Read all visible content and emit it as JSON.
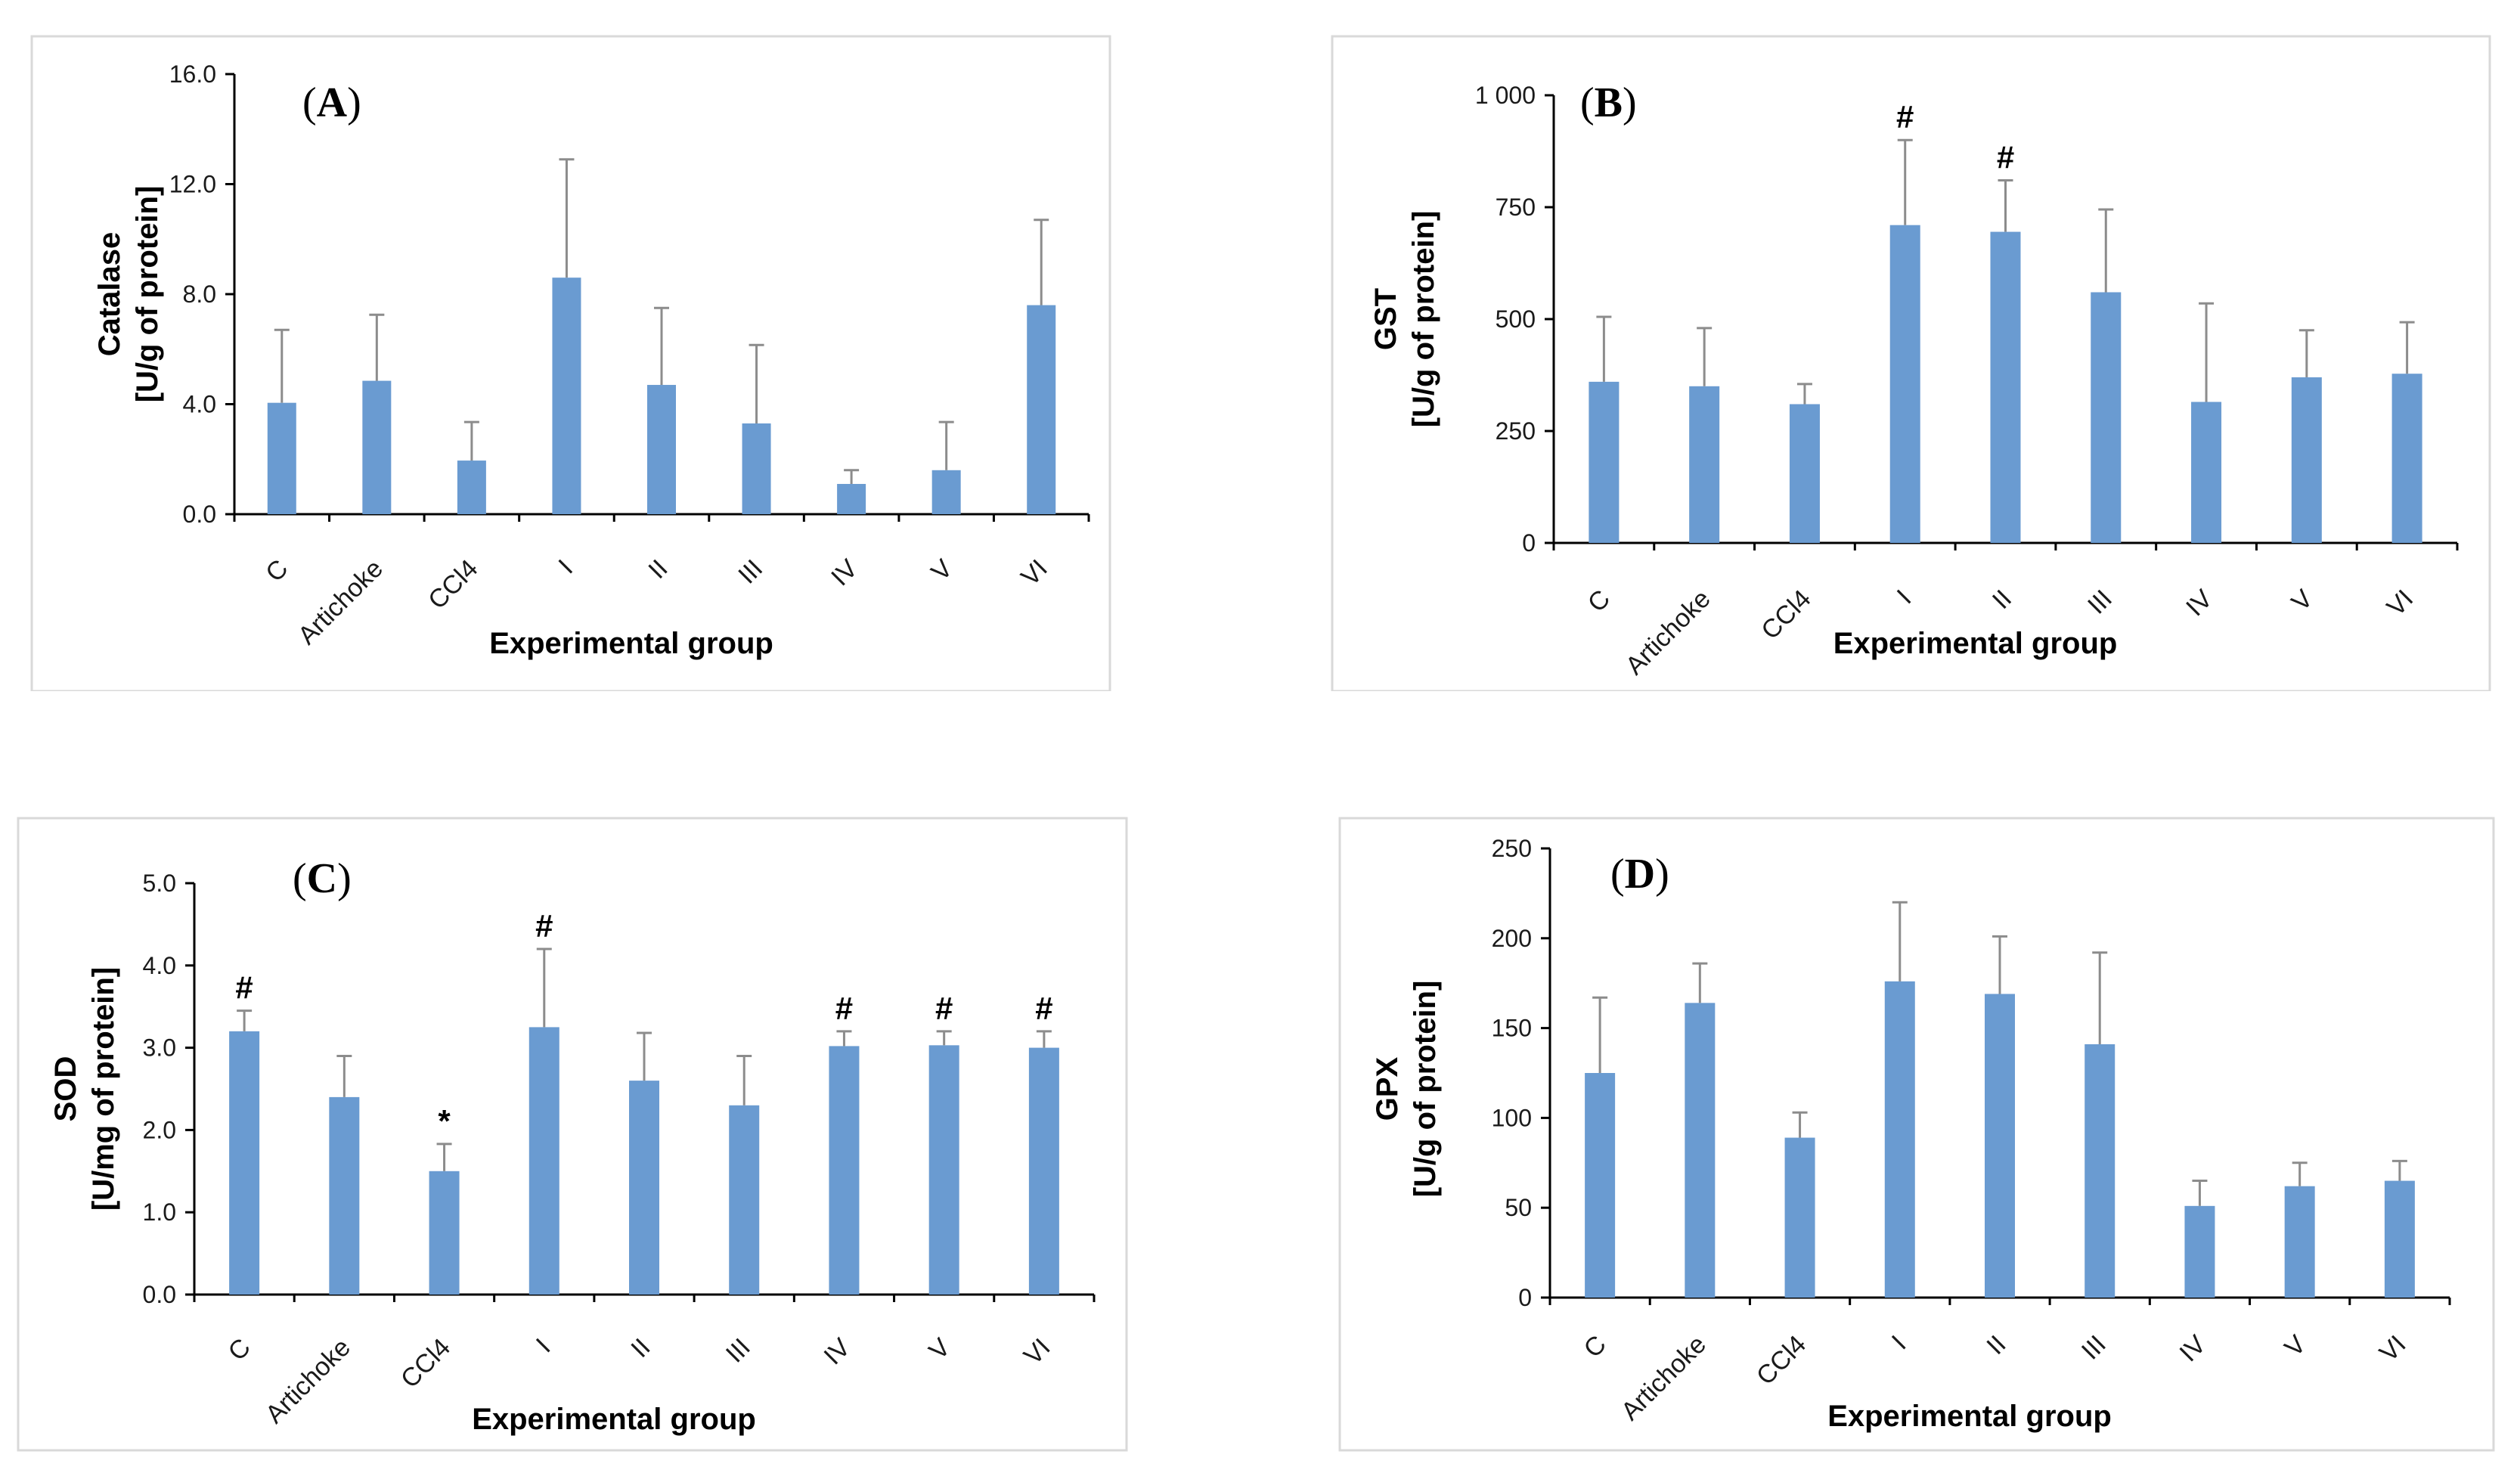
{
  "chart_data": [
    {
      "id": "A",
      "type": "bar",
      "panel_label": "A",
      "ylabel": [
        "Catalase",
        "[U/g of protein]"
      ],
      "xlabel": "Experimental group",
      "categories": [
        "C",
        "Artichoke",
        "CCl4",
        "I",
        "II",
        "III",
        "IV",
        "V",
        "VI"
      ],
      "values": [
        4.05,
        4.85,
        1.95,
        8.6,
        4.7,
        3.3,
        1.1,
        1.6,
        7.6
      ],
      "errors": [
        2.65,
        2.4,
        1.4,
        4.3,
        2.8,
        2.85,
        0.5,
        1.75,
        3.1
      ],
      "markers": [
        "",
        "",
        "",
        "",
        "",
        "",
        "",
        "",
        ""
      ],
      "ylim": [
        0,
        16
      ],
      "yticks": [
        0,
        4,
        8,
        12,
        16
      ],
      "ytick_labels": [
        "0.0",
        "4.0",
        "8.0",
        "12.0",
        "16.0"
      ]
    },
    {
      "id": "B",
      "type": "bar",
      "panel_label": "B",
      "ylabel": [
        "GST",
        "[U/g of protein]"
      ],
      "xlabel": "Experimental group",
      "categories": [
        "C",
        "Artichoke",
        "CCl4",
        "I",
        "II",
        "III",
        "IV",
        "V",
        "VI"
      ],
      "values": [
        360,
        350,
        310,
        710,
        695,
        560,
        315,
        370,
        378
      ],
      "errors": [
        145,
        130,
        45,
        190,
        115,
        185,
        220,
        105,
        115
      ],
      "markers": [
        "",
        "",
        "",
        "#",
        "#",
        "",
        "",
        "",
        ""
      ],
      "ylim": [
        0,
        1000
      ],
      "yticks": [
        0,
        250,
        500,
        750,
        1000
      ],
      "ytick_labels": [
        "0",
        "250",
        "500",
        "750",
        "1 000"
      ]
    },
    {
      "id": "C",
      "type": "bar",
      "panel_label": "C",
      "ylabel": [
        "SOD",
        "[U/mg of protein]"
      ],
      "xlabel": "Experimental group",
      "categories": [
        "C",
        "Artichoke",
        "CCl4",
        "I",
        "II",
        "III",
        "IV",
        "V",
        "VI"
      ],
      "values": [
        3.2,
        2.4,
        1.5,
        3.25,
        2.6,
        2.3,
        3.02,
        3.03,
        3.0
      ],
      "errors": [
        0.25,
        0.5,
        0.33,
        0.95,
        0.58,
        0.6,
        0.18,
        0.17,
        0.2
      ],
      "markers": [
        "#",
        "",
        "*",
        "#",
        "",
        "",
        "#",
        "#",
        "#"
      ],
      "ylim": [
        0,
        5
      ],
      "yticks": [
        0,
        1,
        2,
        3,
        4,
        5
      ],
      "ytick_labels": [
        "0.0",
        "1.0",
        "2.0",
        "3.0",
        "4.0",
        "5.0"
      ]
    },
    {
      "id": "D",
      "type": "bar",
      "panel_label": "D",
      "ylabel": [
        "GPX",
        "[U/g of protein]"
      ],
      "xlabel": "Experimental group",
      "categories": [
        "C",
        "Artichoke",
        "CCl4",
        "I",
        "II",
        "III",
        "IV",
        "V",
        "VI"
      ],
      "values": [
        125,
        164,
        89,
        176,
        169,
        141,
        51,
        62,
        65
      ],
      "errors": [
        42,
        22,
        14,
        44,
        32,
        51,
        14,
        13,
        11
      ],
      "markers": [
        "",
        "",
        "",
        "",
        "",
        "",
        "",
        "",
        ""
      ],
      "ylim": [
        0,
        250
      ],
      "yticks": [
        0,
        50,
        100,
        150,
        200,
        250
      ],
      "ytick_labels": [
        "0",
        "50",
        "100",
        "150",
        "200",
        "250"
      ]
    }
  ],
  "colors": {
    "bar": "#6a9bd1",
    "error_bar": "#8c8c8c"
  }
}
